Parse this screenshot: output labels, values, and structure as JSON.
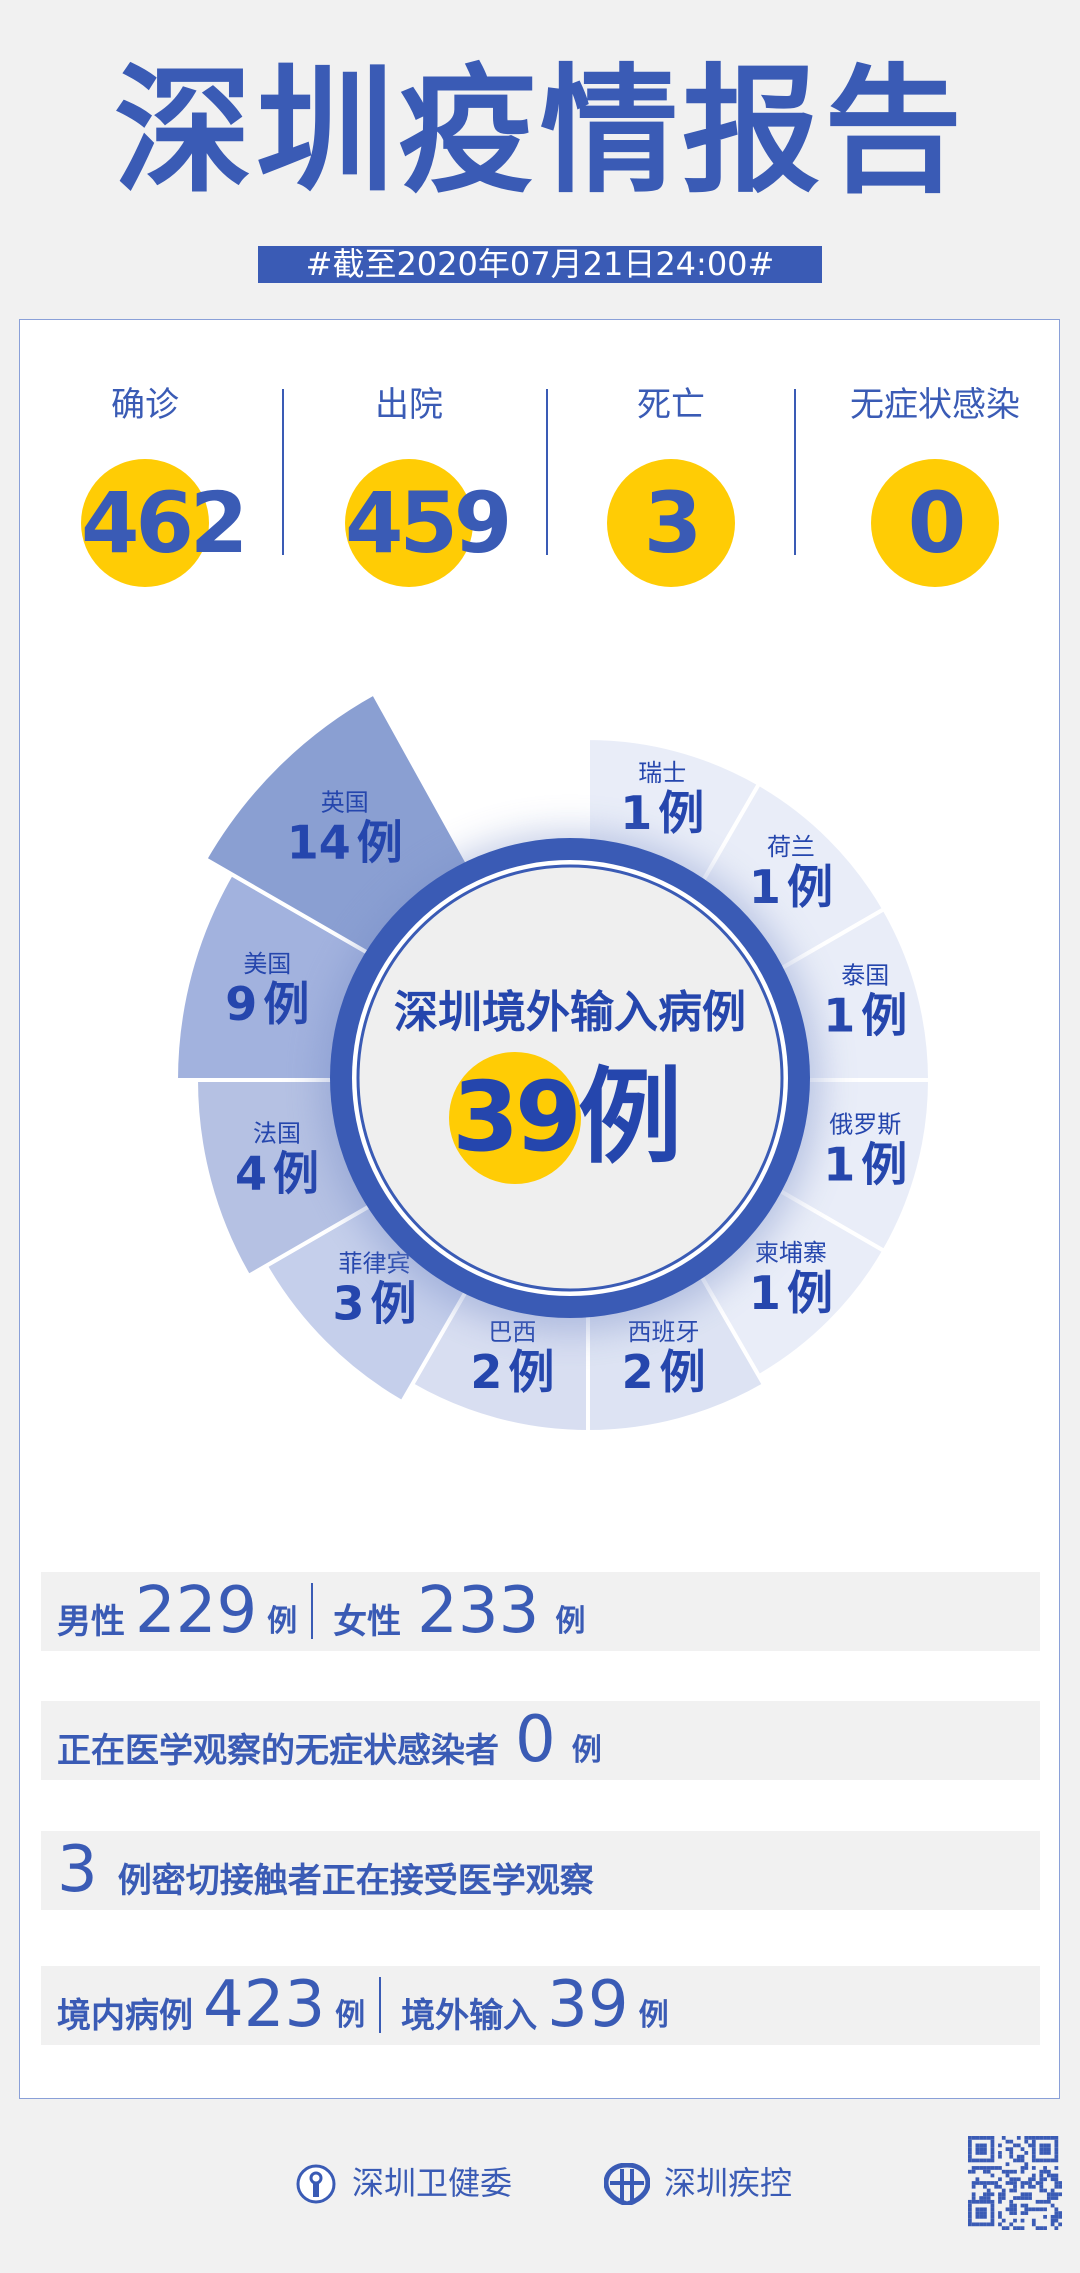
{
  "header": {
    "title": "深圳疫情报告",
    "date_banner": "#截至2020年07月21日24:00#"
  },
  "stats": [
    {
      "label": "确诊",
      "value": "462"
    },
    {
      "label": "出院",
      "value": "459"
    },
    {
      "label": "死亡",
      "value": "3"
    },
    {
      "label": "无症状感染",
      "value": "0"
    }
  ],
  "chart_data": {
    "type": "pie",
    "style": "rose",
    "center_title": "深圳境外输入病例",
    "center_total": "39",
    "unit": "例",
    "categories": [
      "瑞士",
      "荷兰",
      "泰国",
      "俄罗斯",
      "柬埔寨",
      "西班牙",
      "巴西",
      "菲律宾",
      "法国",
      "美国",
      "英国"
    ],
    "values": [
      1,
      1,
      1,
      1,
      1,
      2,
      2,
      3,
      4,
      9,
      14
    ],
    "colors": [
      "#e9edf8",
      "#e9edf8",
      "#e9edf8",
      "#e9edf8",
      "#e9edf8",
      "#dde3f3",
      "#d8def1",
      "#c5cfeb",
      "#b5c1e3",
      "#a2b2de",
      "#8a9fd2"
    ],
    "accent": "#3a5bb5",
    "highlight": "#ffcc05"
  },
  "rows": {
    "gender": {
      "male_label": "男性",
      "male": "229",
      "female_label": "女性",
      "female": "233",
      "unit": "例"
    },
    "asymptomatic": {
      "label": "正在医学观察的无症状感染者",
      "value": "0",
      "unit": "例"
    },
    "contacts": {
      "value": "3",
      "label": "例密切接触者正在接受医学观察"
    },
    "origin": {
      "local_label": "境内病例",
      "local": "423",
      "imported_label": "境外输入",
      "imported": "39",
      "unit": "例"
    }
  },
  "footer": {
    "org1": "深圳卫健委",
    "org2": "深圳疾控",
    "qr": "qr-code"
  }
}
